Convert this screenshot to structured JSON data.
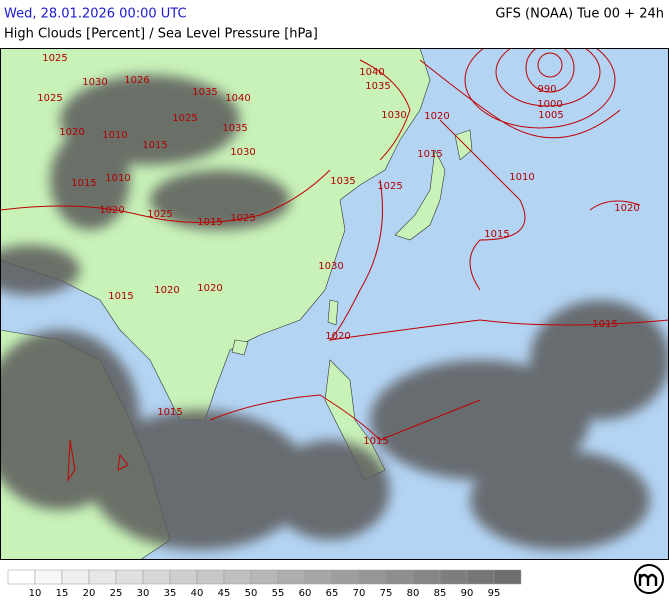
{
  "header": {
    "date": "Wed, 28.01.2026 00:00 UTC",
    "model": "GFS (NOAA) Tue 00 + 24h",
    "title": "High Clouds [Percent] / Sea Level Pressure [hPa]"
  },
  "isobar_labels": [
    "1025",
    "1030",
    "1026",
    "1025",
    "1035",
    "1040",
    "1040",
    "1035",
    "1030",
    "1020",
    "1020",
    "1010",
    "1015",
    "1025",
    "1035",
    "1030",
    "1015",
    "990",
    "1000",
    "1005",
    "1010",
    "1015",
    "1010",
    "1035",
    "1025",
    "1020",
    "1025",
    "1015",
    "1025",
    "1020",
    "1015",
    "1030",
    "1020",
    "1020",
    "1015",
    "1015",
    "1020",
    "1015",
    "1015"
  ],
  "legend": {
    "labels": [
      "10",
      "15",
      "20",
      "25",
      "30",
      "35",
      "40",
      "45",
      "50",
      "55",
      "60",
      "65",
      "70",
      "75",
      "80",
      "85",
      "90",
      "95"
    ]
  }
}
